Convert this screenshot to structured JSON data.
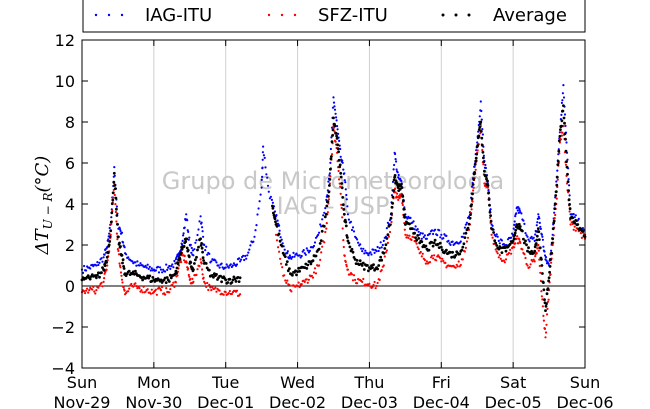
{
  "chart_data": {
    "type": "scatter",
    "ylabel": "ΔT",
    "ylabel_sub": "U − R",
    "ylabel_unit": "(°C)",
    "ylim": [
      -4,
      12
    ],
    "yticks": [
      -4,
      -2,
      0,
      2,
      4,
      6,
      8,
      10,
      12
    ],
    "ytick_labels": [
      "−4",
      "−2",
      "0",
      "2",
      "4",
      "6",
      "8",
      "10",
      "12"
    ],
    "xlim": [
      0,
      7
    ],
    "xticks": [
      {
        "pos": 0,
        "day": "Sun",
        "date": "Nov-29"
      },
      {
        "pos": 1,
        "day": "Mon",
        "date": "Nov-30"
      },
      {
        "pos": 2,
        "day": "Tue",
        "date": "Dec-01"
      },
      {
        "pos": 3,
        "day": "Wed",
        "date": "Dec-02"
      },
      {
        "pos": 4,
        "day": "Thu",
        "date": "Dec-03"
      },
      {
        "pos": 5,
        "day": "Fri",
        "date": "Dec-04"
      },
      {
        "pos": 6,
        "day": "Sat",
        "date": "Dec-05"
      },
      {
        "pos": 7,
        "day": "Sun",
        "date": "Dec-06"
      }
    ],
    "grid": "vertical",
    "zero_line": 0,
    "legend_placement": "top",
    "watermark": [
      "Grupo de Micrometeorologia",
      "IAG - USP"
    ],
    "series": [
      {
        "name": "IAG-ITU",
        "color": "#0000ff",
        "points": [
          [
            0.0,
            0.8
          ],
          [
            0.1,
            0.9
          ],
          [
            0.2,
            1.0
          ],
          [
            0.3,
            1.4
          ],
          [
            0.35,
            1.9
          ],
          [
            0.4,
            3.0
          ],
          [
            0.45,
            5.8
          ],
          [
            0.5,
            3.0
          ],
          [
            0.55,
            2.6
          ],
          [
            0.6,
            1.6
          ],
          [
            0.7,
            1.2
          ],
          [
            0.8,
            1.0
          ],
          [
            0.9,
            0.9
          ],
          [
            1.0,
            0.8
          ],
          [
            1.1,
            0.8
          ],
          [
            1.2,
            0.9
          ],
          [
            1.3,
            1.1
          ],
          [
            1.35,
            1.6
          ],
          [
            1.4,
            2.2
          ],
          [
            1.45,
            3.5
          ],
          [
            1.5,
            2.0
          ],
          [
            1.55,
            1.5
          ],
          [
            1.65,
            3.4
          ],
          [
            1.7,
            2.0
          ],
          [
            1.8,
            1.2
          ],
          [
            1.9,
            1.0
          ],
          [
            2.0,
            0.9
          ],
          [
            2.1,
            1.0
          ],
          [
            2.2,
            1.2
          ],
          [
            2.3,
            1.5
          ],
          [
            2.4,
            2.4
          ],
          [
            2.5,
            4.8
          ],
          [
            2.52,
            6.8
          ],
          [
            2.6,
            4.6
          ],
          [
            2.7,
            3.4
          ],
          [
            2.75,
            2.7
          ],
          [
            2.85,
            1.6
          ],
          [
            2.9,
            1.4
          ],
          [
            3.0,
            1.5
          ],
          [
            3.1,
            1.6
          ],
          [
            3.2,
            1.9
          ],
          [
            3.3,
            2.6
          ],
          [
            3.4,
            4.2
          ],
          [
            3.45,
            5.5
          ],
          [
            3.5,
            9.2
          ],
          [
            3.55,
            7.8
          ],
          [
            3.6,
            6.3
          ],
          [
            3.65,
            5.5
          ],
          [
            3.7,
            3.5
          ],
          [
            3.8,
            2.4
          ],
          [
            3.9,
            1.7
          ],
          [
            4.0,
            1.6
          ],
          [
            4.1,
            1.7
          ],
          [
            4.2,
            2.2
          ],
          [
            4.3,
            3.5
          ],
          [
            4.35,
            6.5
          ],
          [
            4.4,
            5.3
          ],
          [
            4.45,
            5.0
          ],
          [
            4.5,
            3.5
          ],
          [
            4.6,
            3.1
          ],
          [
            4.7,
            2.5
          ],
          [
            4.8,
            2.3
          ],
          [
            4.9,
            2.7
          ],
          [
            5.0,
            2.5
          ],
          [
            5.1,
            2.2
          ],
          [
            5.2,
            2.1
          ],
          [
            5.3,
            2.4
          ],
          [
            5.4,
            3.6
          ],
          [
            5.45,
            5.5
          ],
          [
            5.5,
            7.0
          ],
          [
            5.55,
            9.0
          ],
          [
            5.6,
            6.1
          ],
          [
            5.65,
            5.0
          ],
          [
            5.7,
            3.0
          ],
          [
            5.8,
            2.2
          ],
          [
            5.9,
            2.0
          ],
          [
            6.0,
            2.5
          ],
          [
            6.05,
            3.8
          ],
          [
            6.1,
            3.6
          ],
          [
            6.2,
            2.4
          ],
          [
            6.3,
            2.2
          ],
          [
            6.35,
            3.5
          ],
          [
            6.4,
            2.5
          ],
          [
            6.45,
            1.3
          ],
          [
            6.5,
            1.0
          ],
          [
            6.55,
            2.5
          ],
          [
            6.6,
            5.1
          ],
          [
            6.65,
            7.5
          ],
          [
            6.7,
            9.8
          ],
          [
            6.75,
            6.5
          ],
          [
            6.8,
            3.5
          ],
          [
            6.9,
            3.2
          ],
          [
            7.0,
            2.5
          ]
        ]
      },
      {
        "name": "SFZ-ITU",
        "color": "#ff0000",
        "points": [
          [
            0.0,
            -0.3
          ],
          [
            0.1,
            -0.2
          ],
          [
            0.2,
            -0.2
          ],
          [
            0.3,
            0.2
          ],
          [
            0.35,
            1.0
          ],
          [
            0.4,
            2.5
          ],
          [
            0.45,
            5.0
          ],
          [
            0.5,
            1.8
          ],
          [
            0.55,
            0.5
          ],
          [
            0.6,
            -0.4
          ],
          [
            0.7,
            0.0
          ],
          [
            0.8,
            -0.1
          ],
          [
            0.9,
            -0.2
          ],
          [
            1.0,
            -0.3
          ],
          [
            1.1,
            -0.2
          ],
          [
            1.2,
            -0.3
          ],
          [
            1.3,
            0.2
          ],
          [
            1.35,
            1.0
          ],
          [
            1.4,
            1.5
          ],
          [
            1.45,
            1.2
          ],
          [
            1.5,
            0.3
          ],
          [
            1.55,
            0.2
          ],
          [
            1.65,
            1.3
          ],
          [
            1.7,
            0.2
          ],
          [
            1.8,
            -0.2
          ],
          [
            1.9,
            -0.2
          ],
          [
            2.0,
            -0.3
          ],
          [
            2.1,
            -0.3
          ],
          [
            2.2,
            -0.4
          ],
          [
            2.7,
            2.5
          ],
          [
            2.8,
            0.5
          ],
          [
            2.9,
            -0.2
          ],
          [
            3.0,
            0.0
          ],
          [
            3.1,
            0.2
          ],
          [
            3.2,
            0.5
          ],
          [
            3.3,
            1.0
          ],
          [
            3.4,
            2.8
          ],
          [
            3.45,
            5.0
          ],
          [
            3.5,
            7.8
          ],
          [
            3.55,
            6.5
          ],
          [
            3.6,
            4.5
          ],
          [
            3.65,
            1.5
          ],
          [
            3.7,
            0.8
          ],
          [
            3.8,
            0.3
          ],
          [
            3.9,
            0.2
          ],
          [
            4.0,
            0.1
          ],
          [
            4.1,
            0.0
          ],
          [
            4.2,
            1.0
          ],
          [
            4.3,
            3.0
          ],
          [
            4.35,
            4.7
          ],
          [
            4.4,
            4.2
          ],
          [
            4.45,
            4.5
          ],
          [
            4.5,
            2.5
          ],
          [
            4.6,
            2.4
          ],
          [
            4.7,
            1.6
          ],
          [
            4.8,
            1.2
          ],
          [
            4.9,
            1.5
          ],
          [
            5.0,
            1.2
          ],
          [
            5.1,
            1.0
          ],
          [
            5.2,
            0.9
          ],
          [
            5.3,
            1.3
          ],
          [
            5.4,
            3.0
          ],
          [
            5.45,
            4.8
          ],
          [
            5.5,
            6.5
          ],
          [
            5.55,
            7.8
          ],
          [
            5.6,
            5.0
          ],
          [
            5.65,
            4.8
          ],
          [
            5.7,
            2.5
          ],
          [
            5.8,
            1.4
          ],
          [
            5.9,
            1.3
          ],
          [
            6.0,
            1.9
          ],
          [
            6.05,
            2.3
          ],
          [
            6.1,
            2.1
          ],
          [
            6.2,
            1.0
          ],
          [
            6.3,
            1.2
          ],
          [
            6.35,
            2.0
          ],
          [
            6.4,
            -0.5
          ],
          [
            6.45,
            -2.5
          ],
          [
            6.5,
            -0.2
          ],
          [
            6.55,
            2.0
          ],
          [
            6.6,
            4.0
          ],
          [
            6.65,
            7.0
          ],
          [
            6.7,
            7.8
          ],
          [
            6.75,
            5.0
          ],
          [
            6.8,
            3.0
          ],
          [
            6.9,
            2.8
          ],
          [
            7.0,
            2.3
          ]
        ]
      },
      {
        "name": "Average",
        "color": "#000000",
        "points": [
          [
            0.0,
            0.3
          ],
          [
            0.1,
            0.4
          ],
          [
            0.2,
            0.4
          ],
          [
            0.3,
            0.8
          ],
          [
            0.35,
            1.4
          ],
          [
            0.4,
            2.7
          ],
          [
            0.45,
            5.5
          ],
          [
            0.5,
            2.4
          ],
          [
            0.55,
            1.5
          ],
          [
            0.6,
            0.6
          ],
          [
            0.7,
            0.6
          ],
          [
            0.8,
            0.5
          ],
          [
            0.9,
            0.4
          ],
          [
            1.0,
            0.3
          ],
          [
            1.1,
            0.3
          ],
          [
            1.2,
            0.3
          ],
          [
            1.3,
            0.6
          ],
          [
            1.35,
            1.3
          ],
          [
            1.4,
            1.9
          ],
          [
            1.45,
            2.3
          ],
          [
            1.5,
            1.1
          ],
          [
            1.55,
            0.8
          ],
          [
            1.65,
            2.3
          ],
          [
            1.7,
            1.1
          ],
          [
            1.8,
            0.5
          ],
          [
            1.9,
            0.4
          ],
          [
            2.0,
            0.3
          ],
          [
            2.1,
            0.3
          ],
          [
            2.2,
            0.4
          ],
          [
            2.65,
            3.9
          ],
          [
            2.7,
            3.0
          ],
          [
            2.8,
            1.6
          ],
          [
            2.9,
            0.6
          ],
          [
            3.0,
            0.7
          ],
          [
            3.1,
            0.9
          ],
          [
            3.2,
            1.2
          ],
          [
            3.3,
            1.8
          ],
          [
            3.4,
            3.5
          ],
          [
            3.45,
            5.2
          ],
          [
            3.5,
            8.2
          ],
          [
            3.55,
            7.2
          ],
          [
            3.6,
            5.5
          ],
          [
            3.65,
            3.5
          ],
          [
            3.7,
            2.2
          ],
          [
            3.8,
            1.3
          ],
          [
            3.9,
            1.0
          ],
          [
            4.0,
            0.9
          ],
          [
            4.1,
            0.9
          ],
          [
            4.2,
            1.6
          ],
          [
            4.3,
            3.3
          ],
          [
            4.35,
            5.3
          ],
          [
            4.4,
            4.8
          ],
          [
            4.45,
            4.8
          ],
          [
            4.5,
            3.0
          ],
          [
            4.6,
            2.8
          ],
          [
            4.7,
            2.1
          ],
          [
            4.8,
            1.8
          ],
          [
            4.9,
            2.1
          ],
          [
            5.0,
            1.9
          ],
          [
            5.1,
            1.6
          ],
          [
            5.2,
            1.5
          ],
          [
            5.3,
            1.9
          ],
          [
            5.4,
            3.3
          ],
          [
            5.45,
            5.2
          ],
          [
            5.5,
            6.8
          ],
          [
            5.55,
            8.0
          ],
          [
            5.6,
            5.6
          ],
          [
            5.65,
            4.9
          ],
          [
            5.7,
            2.8
          ],
          [
            5.8,
            1.8
          ],
          [
            5.9,
            1.7
          ],
          [
            6.0,
            2.2
          ],
          [
            6.05,
            3.0
          ],
          [
            6.1,
            2.9
          ],
          [
            6.2,
            1.7
          ],
          [
            6.3,
            1.7
          ],
          [
            6.35,
            2.8
          ],
          [
            6.4,
            1.0
          ],
          [
            6.45,
            -1.2
          ],
          [
            6.5,
            0.4
          ],
          [
            6.55,
            2.3
          ],
          [
            6.6,
            4.6
          ],
          [
            6.65,
            7.3
          ],
          [
            6.7,
            8.8
          ],
          [
            6.75,
            5.8
          ],
          [
            6.8,
            3.3
          ],
          [
            6.9,
            3.0
          ],
          [
            7.0,
            2.4
          ]
        ]
      }
    ]
  }
}
